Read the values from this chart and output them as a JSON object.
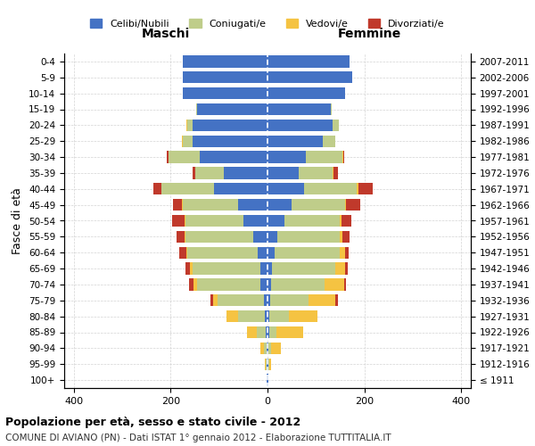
{
  "age_groups": [
    "100+",
    "95-99",
    "90-94",
    "85-89",
    "80-84",
    "75-79",
    "70-74",
    "65-69",
    "60-64",
    "55-59",
    "50-54",
    "45-49",
    "40-44",
    "35-39",
    "30-34",
    "25-29",
    "20-24",
    "15-19",
    "10-14",
    "5-9",
    "0-4"
  ],
  "birth_years": [
    "≤ 1911",
    "1912-1916",
    "1917-1921",
    "1922-1926",
    "1927-1931",
    "1932-1936",
    "1937-1941",
    "1942-1946",
    "1947-1951",
    "1952-1956",
    "1957-1961",
    "1962-1966",
    "1967-1971",
    "1972-1976",
    "1977-1981",
    "1982-1986",
    "1987-1991",
    "1992-1996",
    "1997-2001",
    "2002-2006",
    "2007-2011"
  ],
  "males": {
    "celibi": [
      1,
      1,
      2,
      3,
      5,
      8,
      15,
      15,
      20,
      30,
      50,
      60,
      110,
      90,
      140,
      155,
      155,
      145,
      175,
      175,
      175
    ],
    "coniugati": [
      0,
      2,
      5,
      20,
      55,
      95,
      130,
      140,
      145,
      140,
      120,
      115,
      110,
      60,
      65,
      20,
      10,
      2,
      0,
      0,
      0
    ],
    "vedovi": [
      0,
      2,
      8,
      20,
      25,
      10,
      8,
      5,
      3,
      2,
      2,
      1,
      0,
      0,
      0,
      2,
      2,
      0,
      0,
      0,
      0
    ],
    "divorziati": [
      0,
      0,
      0,
      0,
      0,
      5,
      10,
      10,
      15,
      15,
      25,
      20,
      15,
      5,
      3,
      0,
      0,
      0,
      0,
      0,
      0
    ]
  },
  "females": {
    "nubili": [
      1,
      1,
      2,
      3,
      4,
      5,
      8,
      10,
      15,
      20,
      35,
      50,
      75,
      65,
      80,
      115,
      135,
      130,
      160,
      175,
      170
    ],
    "coniugate": [
      0,
      2,
      6,
      15,
      40,
      80,
      110,
      130,
      135,
      130,
      115,
      110,
      110,
      70,
      75,
      25,
      12,
      3,
      0,
      0,
      0
    ],
    "vedove": [
      0,
      5,
      20,
      55,
      60,
      55,
      40,
      20,
      10,
      5,
      3,
      2,
      2,
      1,
      1,
      0,
      0,
      0,
      0,
      0,
      0
    ],
    "divorziate": [
      0,
      0,
      0,
      0,
      0,
      5,
      5,
      5,
      8,
      15,
      20,
      30,
      30,
      10,
      3,
      0,
      0,
      0,
      0,
      0,
      0
    ]
  },
  "colors": {
    "celibi_nubili": "#4472C4",
    "coniugati": "#BFCD8A",
    "vedovi": "#F5C342",
    "divorziati": "#C0392B"
  },
  "xlim": 420,
  "title1": "Popolazione per età, sesso e stato civile - 2012",
  "title2": "COMUNE DI AVIANO (PN) - Dati ISTAT 1° gennaio 2012 - Elaborazione TUTTITALIA.IT",
  "ylabel_left": "Maschi",
  "ylabel_right": "Femmine",
  "axis_label_left": "Fasce di età",
  "legend_labels": [
    "Celibi/Nubili",
    "Coniugati/e",
    "Vedovi/e",
    "Divorziati/e"
  ]
}
